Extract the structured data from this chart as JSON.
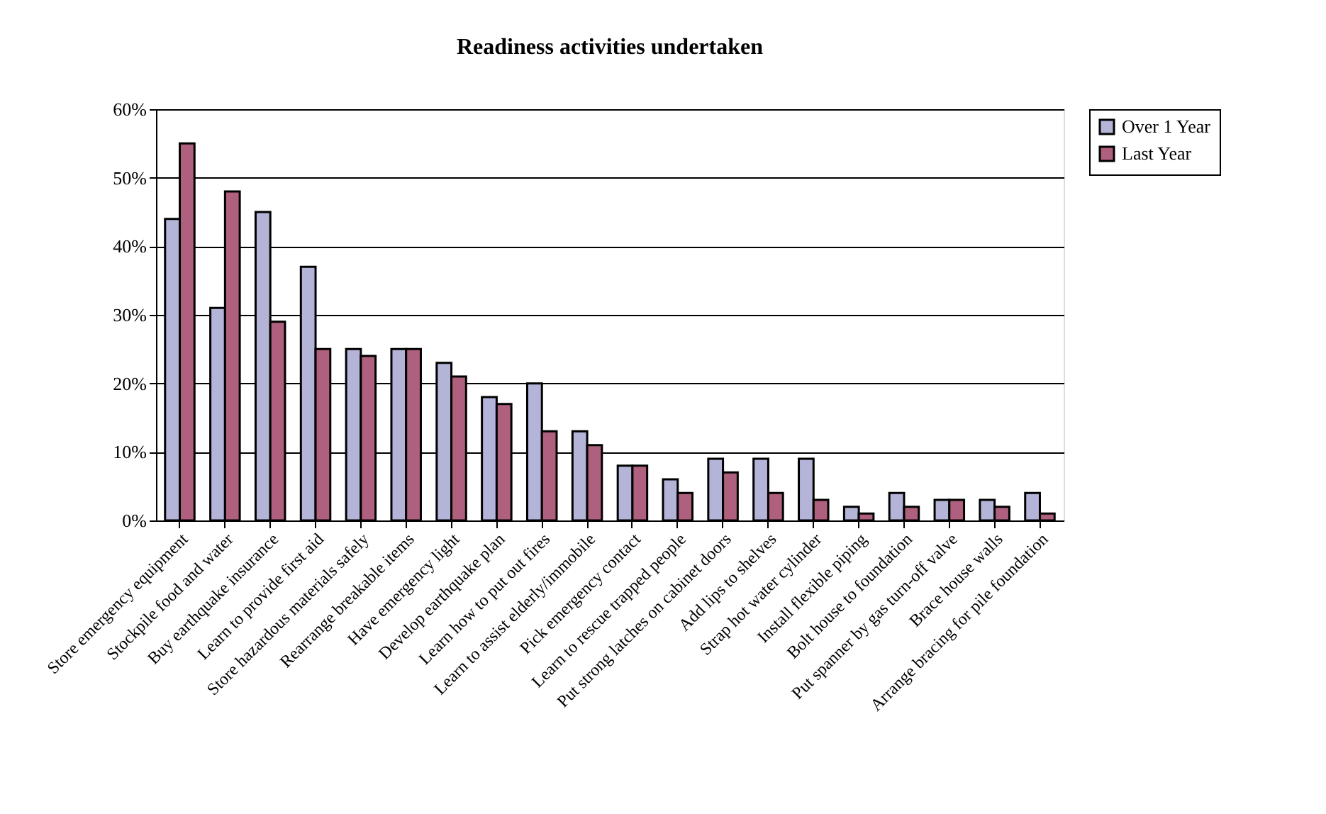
{
  "chart_data": {
    "type": "bar",
    "title": "Readiness activities undertaken",
    "categories": [
      "Store emergency equipment",
      "Stockpile food and water",
      "Buy earthquake insurance",
      "Learn to provide first aid",
      "Store hazardous materials safely",
      "Rearrange breakable items",
      "Have emergency light",
      "Develop earthquake plan",
      "Learn how to put out fires",
      "Learn to assist elderly/immobile",
      "Pick emergency contact",
      "Learn to rescue trapped people",
      "Put strong latches on cabinet doors",
      "Add lips to shelves",
      "Strap hot water cylinder",
      "Install flexible piping",
      "Bolt house to foundation",
      "Put spanner by gas turn-off valve",
      "Brace house walls",
      "Arrange bracing for pile foundation"
    ],
    "series": [
      {
        "name": "Over 1 Year",
        "color": "#b4b4d8",
        "values": [
          44,
          31,
          45,
          37,
          25,
          25,
          23,
          18,
          20,
          13,
          8,
          6,
          9,
          9,
          9,
          2,
          4,
          3,
          3,
          4
        ]
      },
      {
        "name": "Last Year",
        "color": "#b0607f",
        "values": [
          55,
          48,
          29,
          25,
          24,
          25,
          21,
          17,
          13,
          11,
          8,
          4,
          7,
          4,
          3,
          1,
          2,
          3,
          2,
          1
        ]
      }
    ],
    "ylim": [
      0,
      60
    ],
    "yticks": [
      {
        "value": 0,
        "label": "0%"
      },
      {
        "value": 10,
        "label": "10%"
      },
      {
        "value": 20,
        "label": "20%"
      },
      {
        "value": 30,
        "label": "30%"
      },
      {
        "value": 40,
        "label": "40%"
      },
      {
        "value": 50,
        "label": "50%"
      },
      {
        "value": 60,
        "label": "60%"
      }
    ],
    "grid": "y",
    "legend": "right"
  }
}
